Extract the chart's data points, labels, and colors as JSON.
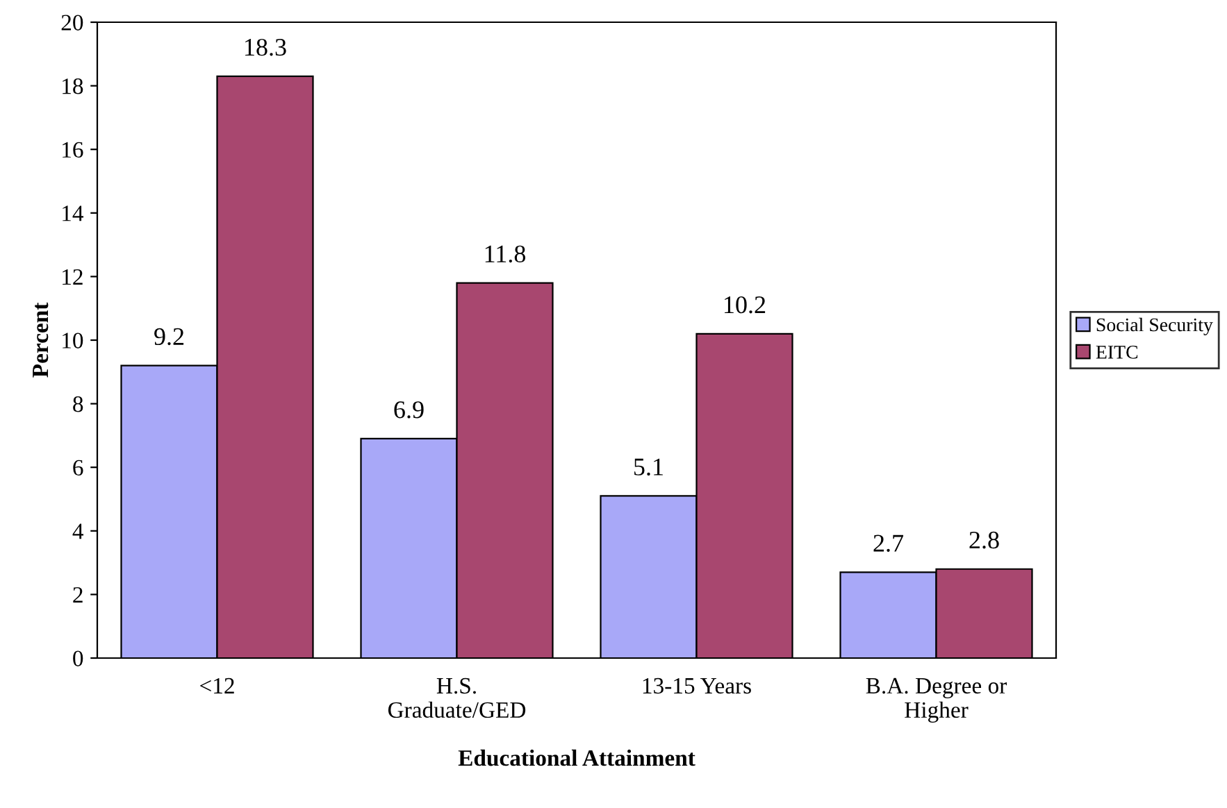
{
  "chart_data": {
    "type": "bar",
    "xlabel": "Educational Attainment",
    "ylabel": "Percent",
    "categories": [
      "<12",
      "H.S.\nGraduate/GED",
      "13-15 Years",
      "B.A. Degree or\nHigher"
    ],
    "series": [
      {
        "name": "Social Security",
        "color": "#a8a8f8",
        "values": [
          9.2,
          6.9,
          5.1,
          2.7
        ]
      },
      {
        "name": "EITC",
        "color": "#a8476f",
        "values": [
          18.3,
          11.8,
          10.2,
          2.8
        ]
      }
    ],
    "ylim": [
      0,
      20
    ],
    "yticks": [
      0,
      2,
      4,
      6,
      8,
      10,
      12,
      14,
      16,
      18,
      20
    ],
    "data_labels": true,
    "grid": false,
    "legend": "right"
  }
}
